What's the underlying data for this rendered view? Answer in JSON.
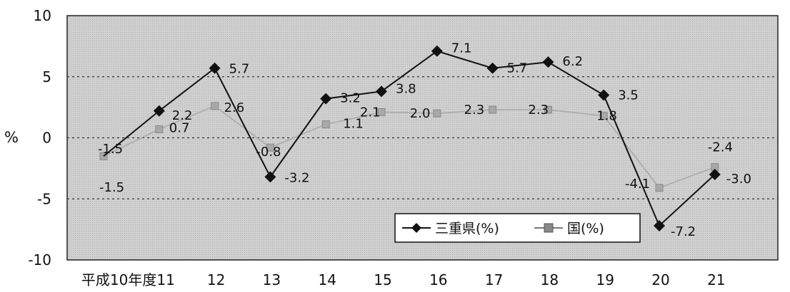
{
  "chart_data": {
    "type": "line",
    "title": "",
    "xlabel": "",
    "ylabel": "%",
    "ylim": [
      -10,
      10
    ],
    "yticks": [
      "10",
      "5",
      "0",
      "-5",
      "-10"
    ],
    "ytick_values": [
      10,
      5,
      0,
      -5,
      -10
    ],
    "categories": [
      "平成10年度",
      "11",
      "12",
      "13",
      "14",
      "15",
      "16",
      "17",
      "18",
      "19",
      "20",
      "21"
    ],
    "category_ticks": [
      "平成10年度11",
      "12",
      "13",
      "14",
      "15",
      "16",
      "17",
      "18",
      "19",
      "20",
      "21"
    ],
    "grid": "horizontal dashed",
    "legend_position": "bottom-right",
    "series": [
      {
        "name": "三重県(%)",
        "values": [
          -1.5,
          2.2,
          5.7,
          -3.2,
          3.2,
          3.8,
          7.1,
          5.7,
          6.2,
          3.5,
          -7.2,
          -3.0
        ],
        "labels": [
          "-1.5",
          "2.2",
          "5.7",
          "-3.2",
          "3.2",
          "3.8",
          "7.1",
          "5.7",
          "6.2",
          "3.5",
          "-7.2",
          "-3.0"
        ],
        "color": "#111111",
        "marker": "diamond"
      },
      {
        "name": "国(%)",
        "values": [
          -1.5,
          0.7,
          2.6,
          -0.8,
          1.1,
          2.1,
          2.0,
          2.3,
          2.3,
          1.8,
          -4.1,
          -2.4
        ],
        "labels": [
          "-1.5",
          "0.7",
          "2.6",
          "-0.8",
          "1.1",
          "2.1",
          "2.0",
          "2.3",
          "2.3",
          "1.8",
          "-4.1",
          "-2.4"
        ],
        "color": "#9a9a9a",
        "marker": "square"
      }
    ]
  },
  "colors": {
    "plot_background": "#c9c9c9",
    "gridline": "#333333"
  }
}
